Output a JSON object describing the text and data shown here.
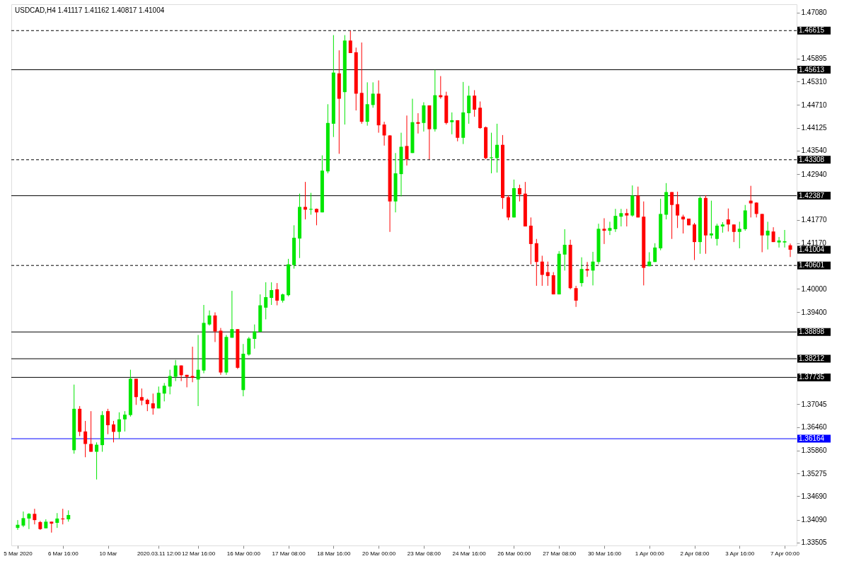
{
  "chart_data": {
    "type": "candlestick",
    "title": "USDCAD,H4  1.41117 1.41162 1.40817 1.41004",
    "categories": [
      "5 Mar 2020",
      null,
      null,
      null,
      null,
      null,
      null,
      null,
      "6 Mar 16:00",
      null,
      null,
      null,
      null,
      null,
      null,
      null,
      "10 Mar",
      null,
      null,
      null,
      null,
      null,
      null,
      null,
      null,
      "2020.03.11 12:00",
      null,
      null,
      null,
      null,
      null,
      null,
      "12 Mar 16:00",
      null,
      null,
      null,
      null,
      null,
      null,
      null,
      "16 Mar 00:00",
      null,
      null,
      null,
      null,
      null,
      null,
      null,
      "17 Mar 08:00",
      null,
      null,
      null,
      null,
      null,
      null,
      null,
      "18 Mar 16:00",
      null,
      null,
      null,
      null,
      null,
      null,
      null,
      "20 Mar 00:00",
      null,
      null,
      null,
      null,
      null,
      null,
      null,
      "23 Mar 08:00",
      null,
      null,
      null,
      null,
      null,
      null,
      null,
      "24 Mar 16:00",
      null,
      null,
      null,
      null,
      null,
      null,
      null,
      "26 Mar 00:00",
      null,
      null,
      null,
      null,
      null,
      null,
      null,
      "27 Mar 08:00",
      null,
      null,
      null,
      null,
      null,
      null,
      null,
      "30 Mar 16:00",
      null,
      null,
      null,
      null,
      null,
      null,
      null,
      "1 Apr 00:00",
      null,
      null,
      null,
      null,
      null,
      null,
      null,
      "2 Apr 08:00",
      null,
      null,
      null,
      null,
      null,
      null,
      null,
      "3 Apr 16:00",
      null,
      null,
      null,
      null,
      null,
      null,
      null,
      "7 Apr 00:00",
      null
    ],
    "ohlc": [
      [
        1.3388,
        1.3408,
        1.3383,
        1.3396
      ],
      [
        1.3394,
        1.343,
        1.339,
        1.3413
      ],
      [
        1.3412,
        1.3426,
        1.3385,
        1.3424
      ],
      [
        1.3424,
        1.3437,
        1.3397,
        1.3408
      ],
      [
        1.3403,
        1.3406,
        1.3383,
        1.3385
      ],
      [
        1.3387,
        1.341,
        1.3387,
        1.3404
      ],
      [
        1.3404,
        1.3404,
        1.3376,
        1.3399
      ],
      [
        1.3401,
        1.3426,
        1.3388,
        1.3412
      ],
      [
        1.3412,
        1.3437,
        1.3397,
        1.341
      ],
      [
        1.341,
        1.3433,
        1.3404,
        1.3421
      ],
      [
        1.3587,
        1.3755,
        1.3578,
        1.3693
      ],
      [
        1.3693,
        1.37,
        1.3623,
        1.3634
      ],
      [
        1.3635,
        1.3662,
        1.3569,
        1.3603
      ],
      [
        1.3603,
        1.3687,
        1.3583,
        1.3583
      ],
      [
        1.3583,
        1.3607,
        1.3512,
        1.3601
      ],
      [
        1.36,
        1.3687,
        1.3583,
        1.3677
      ],
      [
        1.3687,
        1.3693,
        1.3628,
        1.3651
      ],
      [
        1.3653,
        1.3662,
        1.3607,
        1.3634
      ],
      [
        1.3634,
        1.3684,
        1.3617,
        1.3666
      ],
      [
        1.3666,
        1.3687,
        1.3635,
        1.3678
      ],
      [
        1.3677,
        1.3793,
        1.3673,
        1.377
      ],
      [
        1.377,
        1.377,
        1.3703,
        1.3723
      ],
      [
        1.3723,
        1.3745,
        1.3702,
        1.3714
      ],
      [
        1.3716,
        1.3719,
        1.3687,
        1.3705
      ],
      [
        1.3707,
        1.3732,
        1.3678,
        1.3694
      ],
      [
        1.3694,
        1.375,
        1.3694,
        1.3734
      ],
      [
        1.3732,
        1.3759,
        1.3712,
        1.3752
      ],
      [
        1.375,
        1.3793,
        1.373,
        1.3777
      ],
      [
        1.3775,
        1.3818,
        1.3764,
        1.3804
      ],
      [
        1.3804,
        1.3804,
        1.3764,
        1.3779
      ],
      [
        1.378,
        1.378,
        1.3748,
        1.3775
      ],
      [
        1.3777,
        1.3852,
        1.3761,
        1.3773
      ],
      [
        1.3768,
        1.3882,
        1.37,
        1.3793
      ],
      [
        1.3791,
        1.3959,
        1.3784,
        1.3913
      ],
      [
        1.3909,
        1.3945,
        1.3906,
        1.3932
      ],
      [
        1.3932,
        1.394,
        1.3864,
        1.3891
      ],
      [
        1.3893,
        1.39,
        1.378,
        1.3786
      ],
      [
        1.3786,
        1.3882,
        1.378,
        1.3877
      ],
      [
        1.3875,
        1.3995,
        1.3875,
        1.3897
      ],
      [
        1.3897,
        1.3897,
        1.3795,
        1.3798
      ],
      [
        1.3741,
        1.3859,
        1.3725,
        1.3834
      ],
      [
        1.3832,
        1.3877,
        1.3829,
        1.3873
      ],
      [
        1.3872,
        1.3909,
        1.3847,
        1.3891
      ],
      [
        1.389,
        1.3986,
        1.389,
        1.3958
      ],
      [
        1.3952,
        1.4017,
        1.3922,
        1.3979
      ],
      [
        1.3977,
        1.4017,
        1.3959,
        1.3997
      ],
      [
        1.3999,
        1.4015,
        1.3958,
        1.397
      ],
      [
        1.397,
        1.3988,
        1.3965,
        1.3986
      ],
      [
        1.3984,
        1.4077,
        1.3981,
        1.4063
      ],
      [
        1.4061,
        1.4163,
        1.4052,
        1.4131
      ],
      [
        1.4129,
        1.4244,
        1.4079,
        1.421
      ],
      [
        1.421,
        1.4274,
        1.4178,
        1.4203
      ],
      [
        1.4203,
        1.4246,
        1.419,
        1.4205
      ],
      [
        1.4205,
        1.4206,
        1.4163,
        1.4196
      ],
      [
        1.4196,
        1.4342,
        1.4196,
        1.4303
      ],
      [
        1.4301,
        1.4473,
        1.4296,
        1.4425
      ],
      [
        1.4423,
        1.465,
        1.4389,
        1.4554
      ],
      [
        1.4552,
        1.4611,
        1.4346,
        1.4487
      ],
      [
        1.4504,
        1.465,
        1.4421,
        1.4636
      ],
      [
        1.4636,
        1.4661,
        1.4604,
        1.4604
      ],
      [
        1.4606,
        1.4618,
        1.4457,
        1.45
      ],
      [
        1.4502,
        1.4631,
        1.4423,
        1.4428
      ],
      [
        1.4428,
        1.4529,
        1.4418,
        1.4473
      ],
      [
        1.4471,
        1.4529,
        1.4464,
        1.45
      ],
      [
        1.45,
        1.4534,
        1.44,
        1.4419
      ],
      [
        1.4421,
        1.4428,
        1.4367,
        1.4393
      ],
      [
        1.4393,
        1.4394,
        1.4146,
        1.4224
      ],
      [
        1.4224,
        1.4348,
        1.4196,
        1.4296
      ],
      [
        1.4294,
        1.44,
        1.4237,
        1.4364
      ],
      [
        1.4366,
        1.4444,
        1.4316,
        1.4332
      ],
      [
        1.4348,
        1.4487,
        1.4348,
        1.4427
      ],
      [
        1.4427,
        1.445,
        1.4398,
        1.4423
      ],
      [
        1.4425,
        1.4478,
        1.4403,
        1.447
      ],
      [
        1.447,
        1.447,
        1.4332,
        1.4409
      ],
      [
        1.4409,
        1.4561,
        1.4403,
        1.4496
      ],
      [
        1.4496,
        1.4545,
        1.4487,
        1.4491
      ],
      [
        1.4495,
        1.4505,
        1.4421,
        1.4425
      ],
      [
        1.4427,
        1.4452,
        1.4396,
        1.4432
      ],
      [
        1.4432,
        1.4432,
        1.4378,
        1.4387
      ],
      [
        1.4387,
        1.453,
        1.4371,
        1.4452
      ],
      [
        1.445,
        1.452,
        1.4423,
        1.4495
      ],
      [
        1.4495,
        1.4509,
        1.4441,
        1.4459
      ],
      [
        1.4464,
        1.448,
        1.441,
        1.4412
      ],
      [
        1.4414,
        1.4416,
        1.4332,
        1.4335
      ],
      [
        1.4335,
        1.44,
        1.4296,
        1.4337
      ],
      [
        1.4335,
        1.4423,
        1.4298,
        1.4369
      ],
      [
        1.4369,
        1.4394,
        1.4205,
        1.4233
      ],
      [
        1.4235,
        1.424,
        1.4176,
        1.4183
      ],
      [
        1.4183,
        1.428,
        1.4183,
        1.4258
      ],
      [
        1.4258,
        1.4267,
        1.4224,
        1.4242
      ],
      [
        1.4244,
        1.4274,
        1.416,
        1.416
      ],
      [
        1.4162,
        1.4183,
        1.4063,
        1.4115
      ],
      [
        1.4117,
        1.4128,
        1.4008,
        1.4069
      ],
      [
        1.407,
        1.4085,
        1.4008,
        1.4036
      ],
      [
        1.4043,
        1.407,
        1.4008,
        1.4033
      ],
      [
        1.4035,
        1.4043,
        1.3986,
        1.3986
      ],
      [
        1.3986,
        1.4097,
        1.3986,
        1.409
      ],
      [
        1.4088,
        1.4153,
        1.4047,
        1.4113
      ],
      [
        1.4113,
        1.4126,
        1.3999,
        1.4002
      ],
      [
        1.4002,
        1.4008,
        1.3954,
        1.397
      ],
      [
        1.4015,
        1.4081,
        1.4006,
        1.4051
      ],
      [
        1.4051,
        1.4069,
        1.4031,
        1.4047
      ],
      [
        1.4047,
        1.4095,
        1.4009,
        1.407
      ],
      [
        1.4069,
        1.4167,
        1.4063,
        1.4154
      ],
      [
        1.4154,
        1.4181,
        1.4115,
        1.4149
      ],
      [
        1.4149,
        1.4172,
        1.4138,
        1.4156
      ],
      [
        1.4153,
        1.4205,
        1.4146,
        1.4187
      ],
      [
        1.4185,
        1.4205,
        1.416,
        1.4194
      ],
      [
        1.4194,
        1.4205,
        1.416,
        1.4188
      ],
      [
        1.4188,
        1.4265,
        1.4185,
        1.4239
      ],
      [
        1.4239,
        1.4262,
        1.4183,
        1.4183
      ],
      [
        1.4185,
        1.4224,
        1.4009,
        1.4054
      ],
      [
        1.4058,
        1.4094,
        1.4058,
        1.407
      ],
      [
        1.4069,
        1.4117,
        1.4069,
        1.4106
      ],
      [
        1.4104,
        1.4231,
        1.4099,
        1.4192
      ],
      [
        1.419,
        1.4271,
        1.4178,
        1.4248
      ],
      [
        1.4248,
        1.4248,
        1.4128,
        1.4215
      ],
      [
        1.4217,
        1.4249,
        1.4156,
        1.4188
      ],
      [
        1.4185,
        1.419,
        1.4142,
        1.4178
      ],
      [
        1.418,
        1.418,
        1.4163,
        1.4163
      ],
      [
        1.4165,
        1.4169,
        1.4074,
        1.412
      ],
      [
        1.412,
        1.4237,
        1.409,
        1.4233
      ],
      [
        1.4233,
        1.424,
        1.409,
        1.4137
      ],
      [
        1.4137,
        1.4226,
        1.4129,
        1.4142
      ],
      [
        1.4128,
        1.4167,
        1.4111,
        1.4162
      ],
      [
        1.416,
        1.4171,
        1.4144,
        1.4165
      ],
      [
        1.4178,
        1.4206,
        1.4147,
        1.4165
      ],
      [
        1.4165,
        1.4165,
        1.412,
        1.4146
      ],
      [
        1.4146,
        1.4172,
        1.4104,
        1.4154
      ],
      [
        1.4153,
        1.4215,
        1.4149,
        1.4201
      ],
      [
        1.4226,
        1.4264,
        1.4183,
        1.4219
      ],
      [
        1.4221,
        1.4222,
        1.4183,
        1.4192
      ],
      [
        1.4192,
        1.4192,
        1.4094,
        1.4137
      ],
      [
        1.4137,
        1.4172,
        1.4101,
        1.4149
      ],
      [
        1.4147,
        1.4158,
        1.412,
        1.412
      ],
      [
        1.4119,
        1.4133,
        1.4106,
        1.4124
      ],
      [
        1.4119,
        1.4151,
        1.4106,
        1.4122
      ],
      [
        1.41117,
        1.41162,
        1.40817,
        1.41004
      ]
    ],
    "ylim": [
      1.3343,
      1.4729
    ],
    "yticks": [
      {
        "value": 1.4708,
        "label": "1.47080"
      },
      {
        "value": 1.45895,
        "label": "1.45895"
      },
      {
        "value": 1.4531,
        "label": "1.45310"
      },
      {
        "value": 1.4471,
        "label": "1.44710"
      },
      {
        "value": 1.44125,
        "label": "1.44125"
      },
      {
        "value": 1.4354,
        "label": "1.43540"
      },
      {
        "value": 1.4294,
        "label": "1.42940"
      },
      {
        "value": 1.4177,
        "label": "1.41770"
      },
      {
        "value": 1.4117,
        "label": "1.41170"
      },
      {
        "value": 1.4,
        "label": "1.40000"
      },
      {
        "value": 1.394,
        "label": "1.39400"
      },
      {
        "value": 1.37045,
        "label": "1.37045"
      },
      {
        "value": 1.3646,
        "label": "1.36460"
      },
      {
        "value": 1.3586,
        "label": "1.35860"
      },
      {
        "value": 1.35275,
        "label": "1.35275"
      },
      {
        "value": 1.3469,
        "label": "1.34690"
      },
      {
        "value": 1.3409,
        "label": "1.34090"
      },
      {
        "value": 1.33505,
        "label": "1.33505"
      }
    ],
    "ref_lines": [
      {
        "axis": "y",
        "value": 1.46615,
        "label": "1.46615",
        "color": "#000000",
        "line_style": "dashed"
      },
      {
        "axis": "y",
        "value": 1.45613,
        "label": "1.45613",
        "color": "#000000",
        "line_style": "solid"
      },
      {
        "axis": "y",
        "value": 1.43308,
        "label": "1.43308",
        "color": "#000000",
        "line_style": "dashed"
      },
      {
        "axis": "y",
        "value": 1.42387,
        "label": "1.42387",
        "color": "#000000",
        "line_style": "solid"
      },
      {
        "axis": "y",
        "value": 1.40601,
        "label": "1.40601",
        "color": "#000000",
        "line_style": "dashed"
      },
      {
        "axis": "y",
        "value": 1.38898,
        "label": "1.38898",
        "color": "#000000",
        "line_style": "solid"
      },
      {
        "axis": "y",
        "value": 1.38212,
        "label": "1.38212",
        "color": "#000000",
        "line_style": "solid"
      },
      {
        "axis": "y",
        "value": 1.37735,
        "label": "1.37735",
        "color": "#000000",
        "line_style": "solid"
      },
      {
        "axis": "y",
        "value": 1.36164,
        "label": "1.36164",
        "color": "#0000ff",
        "line_style": "solid"
      }
    ],
    "annotations": [
      "1.41004"
    ]
  }
}
